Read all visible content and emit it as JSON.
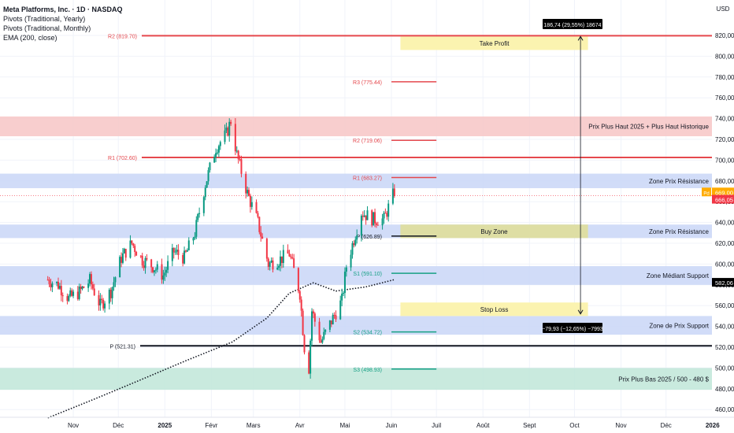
{
  "legend": {
    "title": "Meta Platforms, Inc. · 1D · NASDAQ",
    "line1": "Pivots (Traditional, Yearly)",
    "line2": "Pivots (Traditional, Monthly)",
    "line3": "EMA (200, close)"
  },
  "chart_data": {
    "type": "candlestick",
    "currency": "USD",
    "ylim": [
      455,
      838
    ],
    "y_ticks": [
      "460,00",
      "480,00",
      "500,00",
      "520,00",
      "540,00",
      "560,00",
      "580,00",
      "600,00",
      "620,00",
      "640,00",
      "660,00",
      "680,00",
      "700,00",
      "720,00",
      "740,00",
      "760,00",
      "780,00",
      "800,00",
      "820,00"
    ],
    "x_ticks": [
      "Nov",
      "Déc",
      "2025",
      "Févr",
      "Mars",
      "Avr",
      "Mai",
      "Juin",
      "Juil",
      "Août",
      "Sept",
      "Oct",
      "Nov",
      "Déc",
      "2026"
    ],
    "price_labels": {
      "current": "666,05",
      "ema": "582,06",
      "ask": "669,00",
      "ask_tag": "Pd"
    },
    "zones": [
      {
        "label": "Prix Plus Haut 2025 + Plus Haut Historique",
        "y1": 723,
        "y2": 742,
        "color": "#f7c5c5",
        "span": "full"
      },
      {
        "label": "Zone Prix Résistance",
        "y1": 673,
        "y2": 687,
        "color": "#c9d6f7",
        "span": "full"
      },
      {
        "label": "Zone Prix Résistance",
        "y1": 625,
        "y2": 638,
        "color": "#c9d6f7",
        "span": "full"
      },
      {
        "label": "Zone Médiant Support",
        "y1": 580,
        "y2": 598,
        "color": "#c9d6f7",
        "span": "full"
      },
      {
        "label": "Zone de Prix Support",
        "y1": 532,
        "y2": 550,
        "color": "#c9d6f7",
        "span": "full"
      },
      {
        "label": "Prix Plus Bas 2025 / 500 - 480 $",
        "y1": 479,
        "y2": 500,
        "color": "#bfe6d8",
        "span": "full"
      },
      {
        "label": "Take Profit",
        "y1": 806,
        "y2": 819,
        "color": "#fbf3b0",
        "span": "box"
      },
      {
        "label": "Buy Zone",
        "y1": 625,
        "y2": 638,
        "color": "#dedea4",
        "span": "box"
      },
      {
        "label": "Stop Loss",
        "y1": 550,
        "y2": 563,
        "color": "#fbf3b0",
        "span": "box"
      }
    ],
    "pivots_yearly": [
      {
        "label": "R2 (819.70)",
        "value": 819.7
      },
      {
        "label": "R1 (702.60)",
        "value": 702.6
      },
      {
        "label": "P (521.31)",
        "value": 521.31
      }
    ],
    "pivots_monthly": [
      {
        "label": "R3 (775.44)",
        "value": 775.44,
        "color": "#e5484d"
      },
      {
        "label": "R2 (719.06)",
        "value": 719.06,
        "color": "#e5484d"
      },
      {
        "label": "R1 (683.27)",
        "value": 683.27,
        "color": "#e5484d"
      },
      {
        "label": "P (626.89)",
        "value": 626.89,
        "color": "#131722"
      },
      {
        "label": "S1 (591.10)",
        "value": 591.1,
        "color": "#16a085"
      },
      {
        "label": "S2 (534.72)",
        "value": 534.72,
        "color": "#16a085"
      },
      {
        "label": "S3 (498.93)",
        "value": 498.93,
        "color": "#16a085"
      }
    ],
    "measurements": [
      {
        "label": "186,74 (29,55%) 18674",
        "from": 632,
        "to": 819
      },
      {
        "label": "−79,93 (−12,65%) −7993",
        "from": 632,
        "to": 552
      }
    ],
    "price_path": [
      [
        "2024-10-15",
        585
      ],
      [
        "2024-10-22",
        580
      ],
      [
        "2024-10-29",
        567
      ],
      [
        "2024-11-05",
        573
      ],
      [
        "2024-11-12",
        584
      ],
      [
        "2024-11-19",
        560
      ],
      [
        "2024-11-26",
        574
      ],
      [
        "2024-12-03",
        606
      ],
      [
        "2024-12-10",
        620
      ],
      [
        "2024-12-17",
        604
      ],
      [
        "2024-12-24",
        598
      ],
      [
        "2024-12-31",
        589
      ],
      [
        "2025-01-07",
        612
      ],
      [
        "2025-01-14",
        606
      ],
      [
        "2025-01-21",
        630
      ],
      [
        "2025-01-28",
        677
      ],
      [
        "2025-02-04",
        712
      ],
      [
        "2025-02-11",
        725
      ],
      [
        "2025-02-14",
        738
      ],
      [
        "2025-02-18",
        705
      ],
      [
        "2025-02-25",
        668
      ],
      [
        "2025-03-04",
        640
      ],
      [
        "2025-03-11",
        600
      ],
      [
        "2025-03-18",
        604
      ],
      [
        "2025-03-25",
        610
      ],
      [
        "2025-04-01",
        572
      ],
      [
        "2025-04-04",
        520
      ],
      [
        "2025-04-07",
        500
      ],
      [
        "2025-04-09",
        555
      ],
      [
        "2025-04-15",
        525
      ],
      [
        "2025-04-22",
        545
      ],
      [
        "2025-04-29",
        565
      ],
      [
        "2025-05-02",
        598
      ],
      [
        "2025-05-12",
        650
      ],
      [
        "2025-05-20",
        643
      ],
      [
        "2025-05-27",
        643
      ],
      [
        "2025-06-03",
        670
      ]
    ],
    "ema_path": [
      [
        "2024-10-15",
        452
      ],
      [
        "2024-11-15",
        470
      ],
      [
        "2024-12-15",
        488
      ],
      [
        "2025-01-15",
        507
      ],
      [
        "2025-02-15",
        525
      ],
      [
        "2025-03-10",
        548
      ],
      [
        "2025-03-25",
        572
      ],
      [
        "2025-04-10",
        582
      ],
      [
        "2025-04-25",
        574
      ],
      [
        "2025-05-15",
        578
      ],
      [
        "2025-06-03",
        585
      ]
    ]
  }
}
